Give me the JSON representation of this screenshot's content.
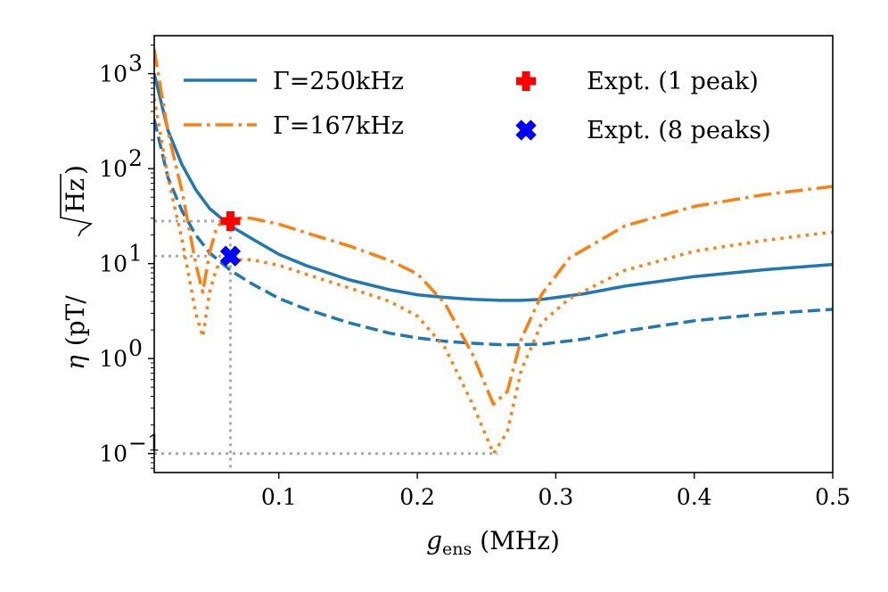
{
  "chart_data": {
    "type": "line",
    "xlabel_main": "g",
    "xlabel_sub": "ens",
    "xlabel_unit": " (MHz)",
    "ylabel_symbol": "η",
    "ylabel_unit_open": "(pT/",
    "ylabel_unit_sqrt": "Hz",
    "ylabel_unit_close": ")",
    "xlim": [
      0.01,
      0.5
    ],
    "ylim_log10": [
      -1.2,
      3.4
    ],
    "yscale": "log",
    "x_ticks": [
      {
        "value": 0.1,
        "label": "0.1"
      },
      {
        "value": 0.2,
        "label": "0.2"
      },
      {
        "value": 0.3,
        "label": "0.3"
      },
      {
        "value": 0.4,
        "label": "0.4"
      },
      {
        "value": 0.5,
        "label": "0.5"
      }
    ],
    "y_ticks": [
      {
        "exp": 3,
        "base": "10",
        "sup": "3"
      },
      {
        "exp": 2,
        "base": "10",
        "sup": "2"
      },
      {
        "exp": 1,
        "base": "10",
        "sup": "1"
      },
      {
        "exp": 0,
        "base": "10",
        "sup": "0"
      },
      {
        "exp": -1,
        "base": "10",
        "sup": "−1"
      }
    ],
    "series": [
      {
        "name": "Γ=250kHz",
        "variant": "1 peak",
        "color": "#1f77b4",
        "style": "solid",
        "x": [
          0.01,
          0.02,
          0.03,
          0.04,
          0.05,
          0.065,
          0.08,
          0.1,
          0.12,
          0.15,
          0.18,
          0.2,
          0.22,
          0.24,
          0.26,
          0.275,
          0.29,
          0.32,
          0.35,
          0.4,
          0.45,
          0.5
        ],
        "y": [
          1000,
          250,
          110,
          60,
          38,
          25,
          18.5,
          12.5,
          9.5,
          6.8,
          5.3,
          4.7,
          4.4,
          4.2,
          4.1,
          4.1,
          4.2,
          4.8,
          5.8,
          7.3,
          8.6,
          9.8
        ]
      },
      {
        "name": "",
        "variant": "8 peaks",
        "color": "#1f77b4",
        "style": "dashed",
        "x": [
          0.01,
          0.02,
          0.03,
          0.04,
          0.05,
          0.065,
          0.08,
          0.1,
          0.12,
          0.15,
          0.18,
          0.2,
          0.22,
          0.24,
          0.26,
          0.275,
          0.29,
          0.32,
          0.35,
          0.4,
          0.45,
          0.5
        ],
        "y": [
          330,
          80,
          36,
          20,
          13,
          8.5,
          6.2,
          4.3,
          3.3,
          2.4,
          1.85,
          1.65,
          1.52,
          1.45,
          1.4,
          1.4,
          1.42,
          1.6,
          1.95,
          2.5,
          2.95,
          3.3
        ]
      },
      {
        "name": "Γ=167kHz",
        "variant": "1 peak",
        "color": "#ff7f0e",
        "style": "dashdot",
        "x": [
          0.01,
          0.02,
          0.03,
          0.04,
          0.045,
          0.05,
          0.055,
          0.06,
          0.065,
          0.08,
          0.1,
          0.12,
          0.15,
          0.18,
          0.2,
          0.22,
          0.24,
          0.255,
          0.265,
          0.275,
          0.29,
          0.31,
          0.35,
          0.4,
          0.45,
          0.5
        ],
        "y": [
          1800,
          240,
          58,
          10,
          5,
          13,
          24,
          28.5,
          30,
          30,
          26,
          21,
          15.5,
          10.8,
          7.8,
          3.8,
          1.1,
          0.33,
          0.45,
          1.6,
          4.8,
          11.5,
          25,
          40,
          53,
          65
        ]
      },
      {
        "name": "",
        "variant": "8 peaks",
        "color": "#ff7f0e",
        "style": "dotted",
        "x": [
          0.01,
          0.02,
          0.03,
          0.04,
          0.045,
          0.05,
          0.055,
          0.06,
          0.065,
          0.08,
          0.1,
          0.12,
          0.15,
          0.18,
          0.2,
          0.22,
          0.24,
          0.255,
          0.265,
          0.275,
          0.29,
          0.31,
          0.35,
          0.4,
          0.45,
          0.5
        ],
        "y": [
          550,
          80,
          18,
          3,
          1.7,
          5,
          9,
          10.5,
          11,
          11,
          9.6,
          7.7,
          5.6,
          4.0,
          2.8,
          1.3,
          0.33,
          0.1,
          0.17,
          0.75,
          2.4,
          4.3,
          8.5,
          13.5,
          17.5,
          21.5
        ]
      }
    ],
    "experiment_points": [
      {
        "label": "Expt. (1 peak)",
        "x": 0.065,
        "y": 28,
        "marker": "plus",
        "color": "#ff0000"
      },
      {
        "label": "Expt. (8 peaks)",
        "x": 0.065,
        "y": 12,
        "marker": "x",
        "color": "#0000ff"
      }
    ],
    "guides": [
      {
        "orientation": "horizontal",
        "y": 28,
        "x_from": 0.01,
        "x_to": 0.065
      },
      {
        "orientation": "horizontal",
        "y": 12,
        "x_from": 0.01,
        "x_to": 0.065
      },
      {
        "orientation": "horizontal",
        "y": 0.1,
        "x_from": 0.01,
        "x_to": 0.258
      },
      {
        "orientation": "vertical",
        "x": 0.065,
        "y_from": 0.06,
        "y_to": 28
      }
    ],
    "legend_placement": "top"
  }
}
